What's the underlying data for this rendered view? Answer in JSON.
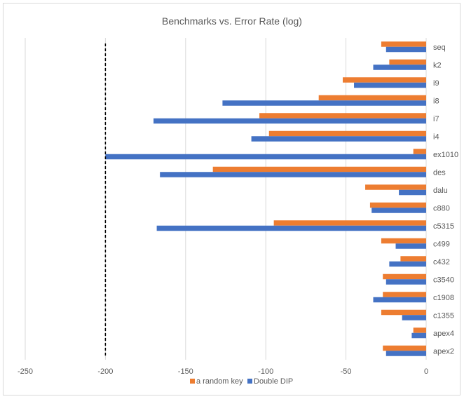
{
  "chart_data": {
    "type": "bar",
    "orientation": "horizontal",
    "title": "Benchmarks vs. Error Rate (log)",
    "xlabel": "",
    "ylabel": "",
    "xlim": [
      -250,
      0
    ],
    "x_ticks": [
      -250,
      -200,
      -150,
      -100,
      -50,
      0
    ],
    "grid": "vertical",
    "legend_position": "bottom",
    "reference_line": {
      "x": -200,
      "style": "dashed"
    },
    "categories": [
      "seq",
      "k2",
      "i9",
      "i8",
      "i7",
      "i4",
      "ex1010",
      "des",
      "dalu",
      "c880",
      "c5315",
      "c499",
      "c432",
      "c3540",
      "c1908",
      "c1355",
      "apex4",
      "apex2"
    ],
    "series": [
      {
        "name": "a random key",
        "color": "#ed7d31",
        "values": [
          -28,
          -23,
          -52,
          -67,
          -104,
          -98,
          -8,
          -133,
          -38,
          -35,
          -95,
          -28,
          -16,
          -27,
          -27,
          -28,
          -8,
          -27
        ]
      },
      {
        "name": "Double DIP",
        "color": "#4472c4",
        "values": [
          -25,
          -33,
          -45,
          -127,
          -170,
          -109,
          -200,
          -166,
          -17,
          -34,
          -168,
          -19,
          -23,
          -25,
          -33,
          -15,
          -9,
          -25
        ]
      }
    ]
  }
}
